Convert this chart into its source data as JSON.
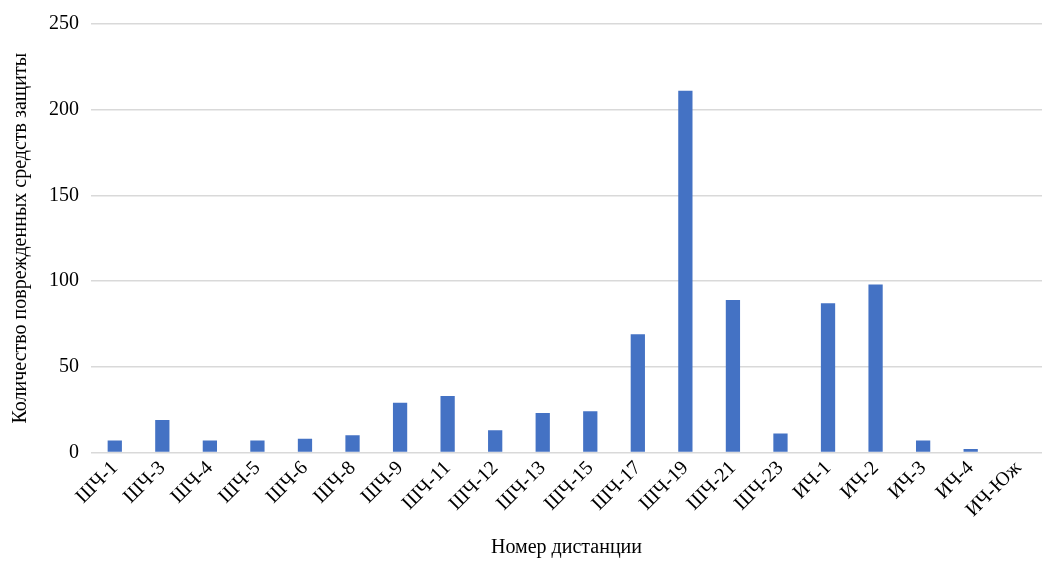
{
  "chart_data": {
    "type": "bar",
    "xlabel": "Номер дистанции",
    "ylabel": "Количество поврежденных средств защиты",
    "categories": [
      "ШЧ-1",
      "ШЧ-3",
      "ШЧ-4",
      "ШЧ-5",
      "ШЧ-6",
      "ШЧ-8",
      "ШЧ-9",
      "ШЧ-11",
      "ШЧ-12",
      "ШЧ-13",
      "ШЧ-15",
      "ШЧ-17",
      "ШЧ-19",
      "ШЧ-21",
      "ШЧ-23",
      "ИЧ-1",
      "ИЧ-2",
      "ИЧ-3",
      "ИЧ-4",
      "ИЧ-Юж"
    ],
    "values": [
      7,
      19,
      7,
      7,
      8,
      10,
      29,
      33,
      13,
      23,
      24,
      69,
      211,
      89,
      11,
      87,
      98,
      7,
      2,
      0
    ],
    "color": "#4472c4",
    "ylim": [
      0,
      250
    ],
    "yticks": [
      0,
      50,
      100,
      150,
      200,
      250
    ],
    "grid": "y",
    "legend": false
  }
}
